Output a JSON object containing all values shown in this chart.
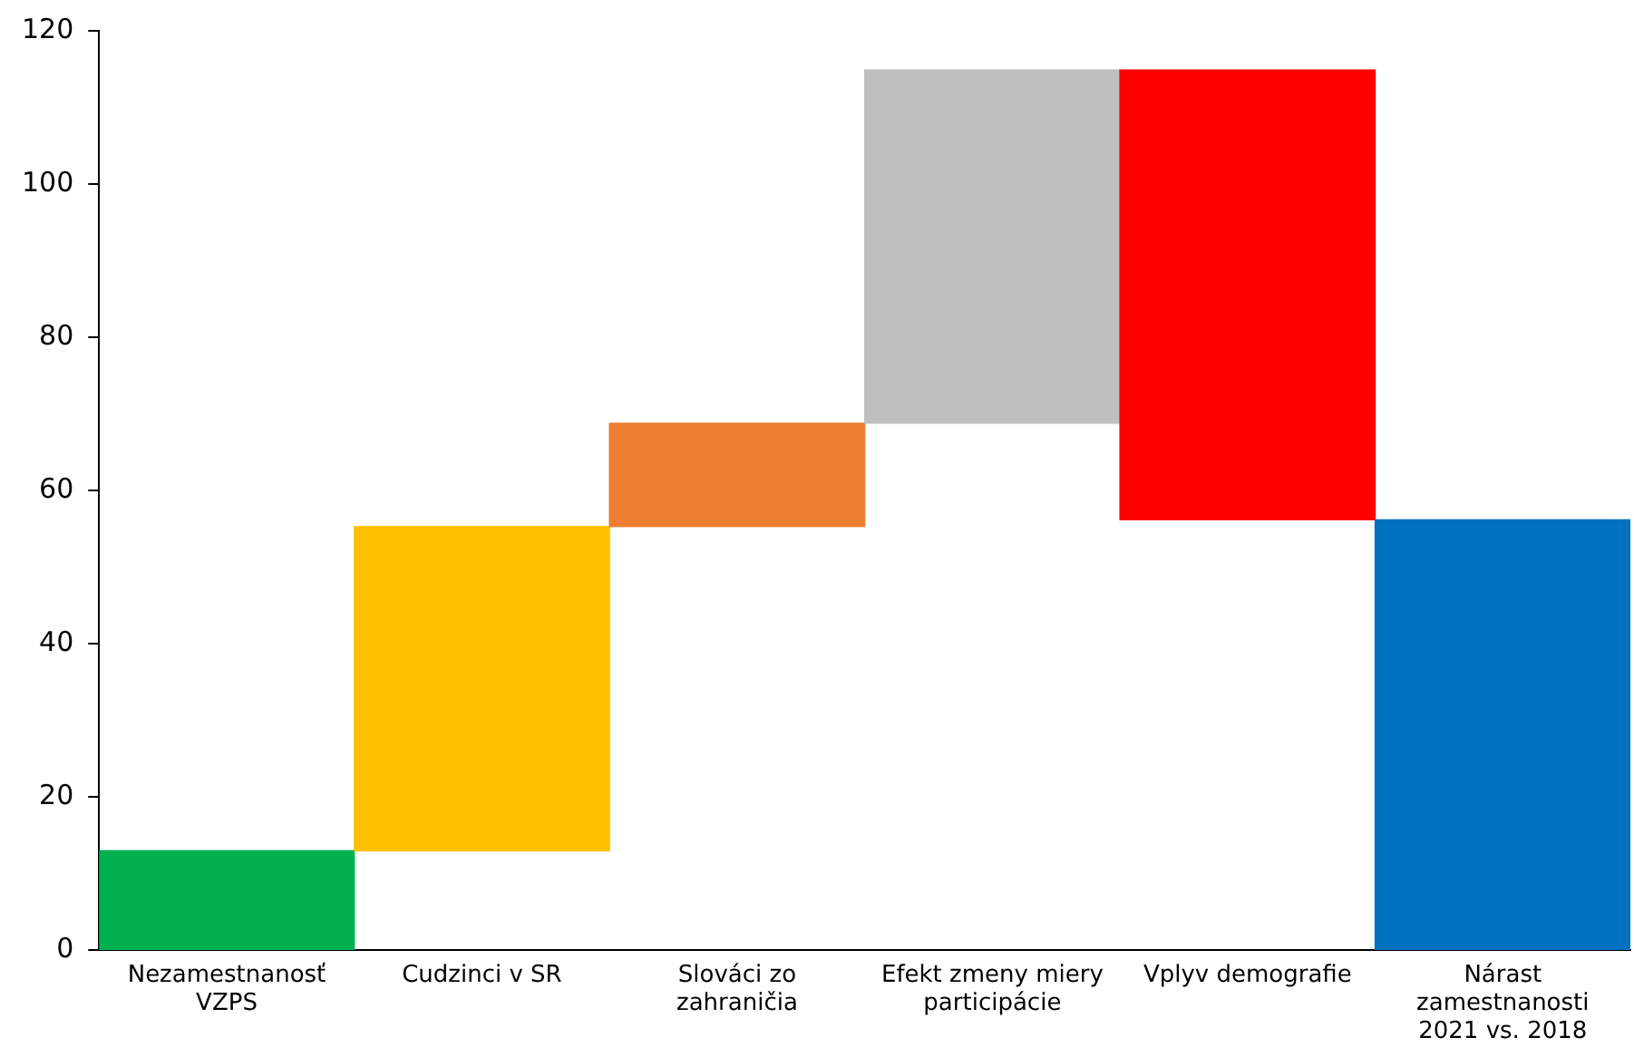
{
  "chart_data": {
    "type": "bar",
    "categories": [
      "Nezamestnanosť VZPS",
      "Cudzinci v SR",
      "Slováci zo zahraničia",
      "Efekt zmeny miery participácie",
      "Vplyv demografie",
      "Nárast zamestnanosti 2021 vs. 2018"
    ],
    "values": [
      13,
      42.3,
      13.5,
      46.1,
      -58.7,
      56.2
    ],
    "base": [
      0,
      13,
      55.3,
      68.8,
      114.9,
      0
    ],
    "colors": [
      "#00b050",
      "#ffc000",
      "#ed7d31",
      "#bfbfbf",
      "#ff0000",
      "#0070c0"
    ],
    "ylim": [
      0,
      120
    ],
    "yticks": [
      0,
      20,
      40,
      60,
      80,
      100,
      120
    ],
    "grid": false,
    "legend": false
  }
}
